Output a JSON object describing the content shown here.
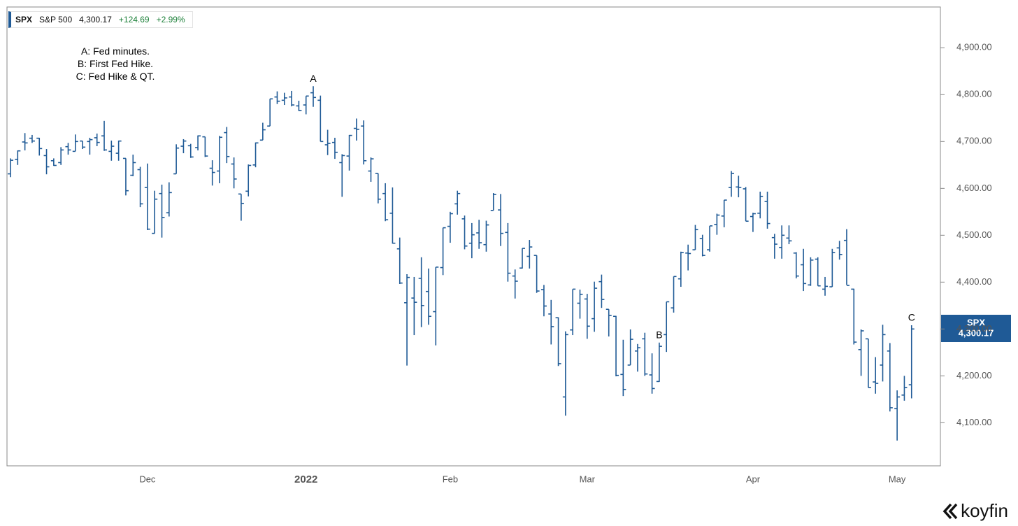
{
  "header": {
    "symbol": "SPX",
    "name": "S&P 500",
    "price": "4,300.17",
    "change": "+124.69",
    "change_pct": "+2.99%"
  },
  "notes": [
    "A: Fed minutes.",
    "B: First Fed Hike.",
    "C: Fed Hike & QT."
  ],
  "brand": "koyfin",
  "chart_data": {
    "type": "ohlc",
    "color": "#1f5a96",
    "categories": [
      null,
      null,
      null,
      null,
      null,
      null,
      null,
      null,
      null,
      null,
      null,
      null,
      null,
      null,
      null,
      null,
      null,
      null,
      null,
      "Dec",
      null,
      null,
      null,
      null,
      null,
      null,
      null,
      null,
      null,
      null,
      null,
      null,
      null,
      null,
      null,
      null,
      null,
      null,
      null,
      null,
      null,
      "2022",
      null,
      null,
      null,
      null,
      null,
      null,
      null,
      null,
      null,
      null,
      null,
      null,
      null,
      null,
      null,
      null,
      null,
      null,
      null,
      "Feb",
      null,
      null,
      null,
      null,
      null,
      null,
      null,
      null,
      null,
      null,
      null,
      null,
      null,
      null,
      null,
      null,
      null,
      null,
      "Mar",
      null,
      null,
      null,
      null,
      null,
      null,
      null,
      null,
      null,
      null,
      null,
      null,
      null,
      null,
      null,
      null,
      null,
      null,
      null,
      null,
      null,
      null,
      "Apr",
      null,
      null,
      null,
      null,
      null,
      null,
      null,
      null,
      null,
      null,
      null,
      null,
      null,
      null,
      null,
      null,
      null,
      null,
      null,
      "May",
      null,
      null
    ],
    "open": [
      4631,
      4662,
      4699,
      4707,
      4707,
      4670,
      4659,
      4655,
      4689,
      4679,
      4701,
      4700,
      4708,
      4712,
      4679,
      4675,
      4664,
      4628,
      4640,
      4602,
      4504,
      4589,
      4548,
      4631,
      4690,
      4691,
      4687,
      4710,
      4643,
      4637,
      4719,
      4652,
      4588,
      4594,
      4650,
      4703,
      4733,
      4795,
      4788,
      4795,
      4776,
      4778,
      4804,
      4788,
      4693,
      4698,
      4655,
      4669,
      4728,
      4733,
      4637,
      4632,
      4589,
      4547,
      4471,
      4356,
      4366,
      4408,
      4380,
      4337,
      4431,
      4519,
      4567,
      4535,
      4483,
      4505,
      4480,
      4553,
      4554,
      4506,
      4413,
      4430,
      4455,
      4457,
      4384,
      4332,
      4324,
      4155,
      4298,
      4355,
      4364,
      4322,
      4401,
      4342,
      4327,
      4203,
      4223,
      4253,
      4279,
      4202,
      4188,
      4288,
      4345,
      4407,
      4462,
      4469,
      4493,
      4469,
      4523,
      4541,
      4602,
      4603,
      4599,
      4540,
      4547,
      4572,
      4495,
      4474,
      4494,
      4462,
      4437,
      4394,
      4449,
      4385,
      4390,
      4473,
      4489,
      4385,
      4256,
      4279,
      4187,
      4223,
      4253,
      4130,
      4159,
      4181
    ],
    "high": [
      4664,
      4681,
      4718,
      4714,
      4708,
      4684,
      4664,
      4688,
      4697,
      4715,
      4701,
      4708,
      4717,
      4744,
      4702,
      4702,
      4664,
      4672,
      4646,
      4653,
      4595,
      4608,
      4613,
      4694,
      4705,
      4695,
      4713,
      4710,
      4660,
      4712,
      4731,
      4666,
      4588,
      4651,
      4698,
      4740,
      4791,
      4807,
      4804,
      4808,
      4787,
      4797,
      4818,
      4798,
      4725,
      4708,
      4673,
      4714,
      4749,
      4745,
      4666,
      4632,
      4611,
      4602,
      4495,
      4417,
      4411,
      4453,
      4429,
      4432,
      4516,
      4550,
      4595,
      4542,
      4526,
      4533,
      4531,
      4590,
      4588,
      4526,
      4427,
      4472,
      4490,
      4457,
      4394,
      4362,
      4325,
      4295,
      4385,
      4384,
      4375,
      4401,
      4416,
      4342,
      4328,
      4277,
      4299,
      4268,
      4292,
      4248,
      4271,
      4358,
      4412,
      4465,
      4480,
      4522,
      4501,
      4520,
      4546,
      4575,
      4637,
      4627,
      4603,
      4548,
      4593,
      4593,
      4503,
      4521,
      4521,
      4464,
      4471,
      4453,
      4453,
      4411,
      4471,
      4488,
      4513,
      4386,
      4299,
      4279,
      4240,
      4309,
      4270,
      4169,
      4200,
      4308
    ],
    "low": [
      4624,
      4650,
      4681,
      4697,
      4670,
      4630,
      4648,
      4650,
      4672,
      4679,
      4684,
      4672,
      4690,
      4680,
      4659,
      4659,
      4585,
      4626,
      4560,
      4511,
      4504,
      4495,
      4540,
      4631,
      4675,
      4665,
      4681,
      4667,
      4606,
      4611,
      4654,
      4600,
      4531,
      4583,
      4645,
      4703,
      4733,
      4780,
      4778,
      4775,
      4765,
      4758,
      4774,
      4700,
      4671,
      4663,
      4582,
      4638,
      4702,
      4651,
      4614,
      4568,
      4530,
      4482,
      4396,
      4222,
      4287,
      4304,
      4309,
      4265,
      4415,
      4484,
      4544,
      4470,
      4451,
      4471,
      4465,
      4553,
      4477,
      4401,
      4365,
      4429,
      4429,
      4377,
      4327,
      4267,
      4221,
      4115,
      4287,
      4322,
      4279,
      4294,
      4345,
      4284,
      4199,
      4157,
      4223,
      4209,
      4200,
      4162,
      4187,
      4251,
      4335,
      4390,
      4425,
      4469,
      4455,
      4465,
      4501,
      4517,
      4582,
      4581,
      4530,
      4507,
      4536,
      4514,
      4450,
      4450,
      4481,
      4408,
      4381,
      4392,
      4392,
      4371,
      4390,
      4448,
      4394,
      4267,
      4200,
      4175,
      4162,
      4188,
      4124,
      4062,
      4147,
      4152
    ],
    "close": [
      4660,
      4680,
      4697,
      4701,
      4685,
      4646,
      4649,
      4682,
      4682,
      4700,
      4688,
      4704,
      4698,
      4682,
      4690,
      4701,
      4595,
      4655,
      4567,
      4513,
      4577,
      4538,
      4591,
      4686,
      4701,
      4667,
      4712,
      4669,
      4634,
      4709,
      4668,
      4620,
      4568,
      4649,
      4697,
      4725,
      4791,
      4786,
      4793,
      4778,
      4766,
      4797,
      4794,
      4700,
      4696,
      4677,
      4670,
      4713,
      4726,
      4659,
      4663,
      4577,
      4533,
      4483,
      4398,
      4410,
      4357,
      4350,
      4327,
      4432,
      4516,
      4546,
      4589,
      4477,
      4501,
      4484,
      4522,
      4587,
      4504,
      4419,
      4402,
      4472,
      4475,
      4381,
      4349,
      4305,
      4226,
      4288,
      4385,
      4374,
      4306,
      4387,
      4363,
      4329,
      4201,
      4171,
      4278,
      4260,
      4204,
      4173,
      4263,
      4358,
      4412,
      4463,
      4461,
      4512,
      4457,
      4520,
      4543,
      4575,
      4632,
      4602,
      4530,
      4546,
      4583,
      4525,
      4481,
      4500,
      4488,
      4413,
      4397,
      4447,
      4392,
      4391,
      4463,
      4459,
      4393,
      4272,
      4296,
      4175,
      4184,
      4288,
      4132,
      4155,
      4175,
      4300
    ],
    "events": [
      {
        "label": "A",
        "bar": 42
      },
      {
        "label": "B",
        "bar": 90
      },
      {
        "label": "C",
        "bar": 125
      }
    ],
    "ylim": [
      4008,
      4987
    ],
    "yticks": [
      {
        "value": 4100,
        "label": "4,100.00"
      },
      {
        "value": 4200,
        "label": "4,200.00"
      },
      {
        "value": 4300,
        "label": "4,300.00"
      },
      {
        "value": 4400,
        "label": "4,400.00"
      },
      {
        "value": 4500,
        "label": "4,500.00"
      },
      {
        "value": 4600,
        "label": "4,600.00"
      },
      {
        "value": 4700,
        "label": "4,700.00"
      },
      {
        "value": 4800,
        "label": "4,800.00"
      },
      {
        "value": 4900,
        "label": "4,900.00"
      }
    ]
  }
}
